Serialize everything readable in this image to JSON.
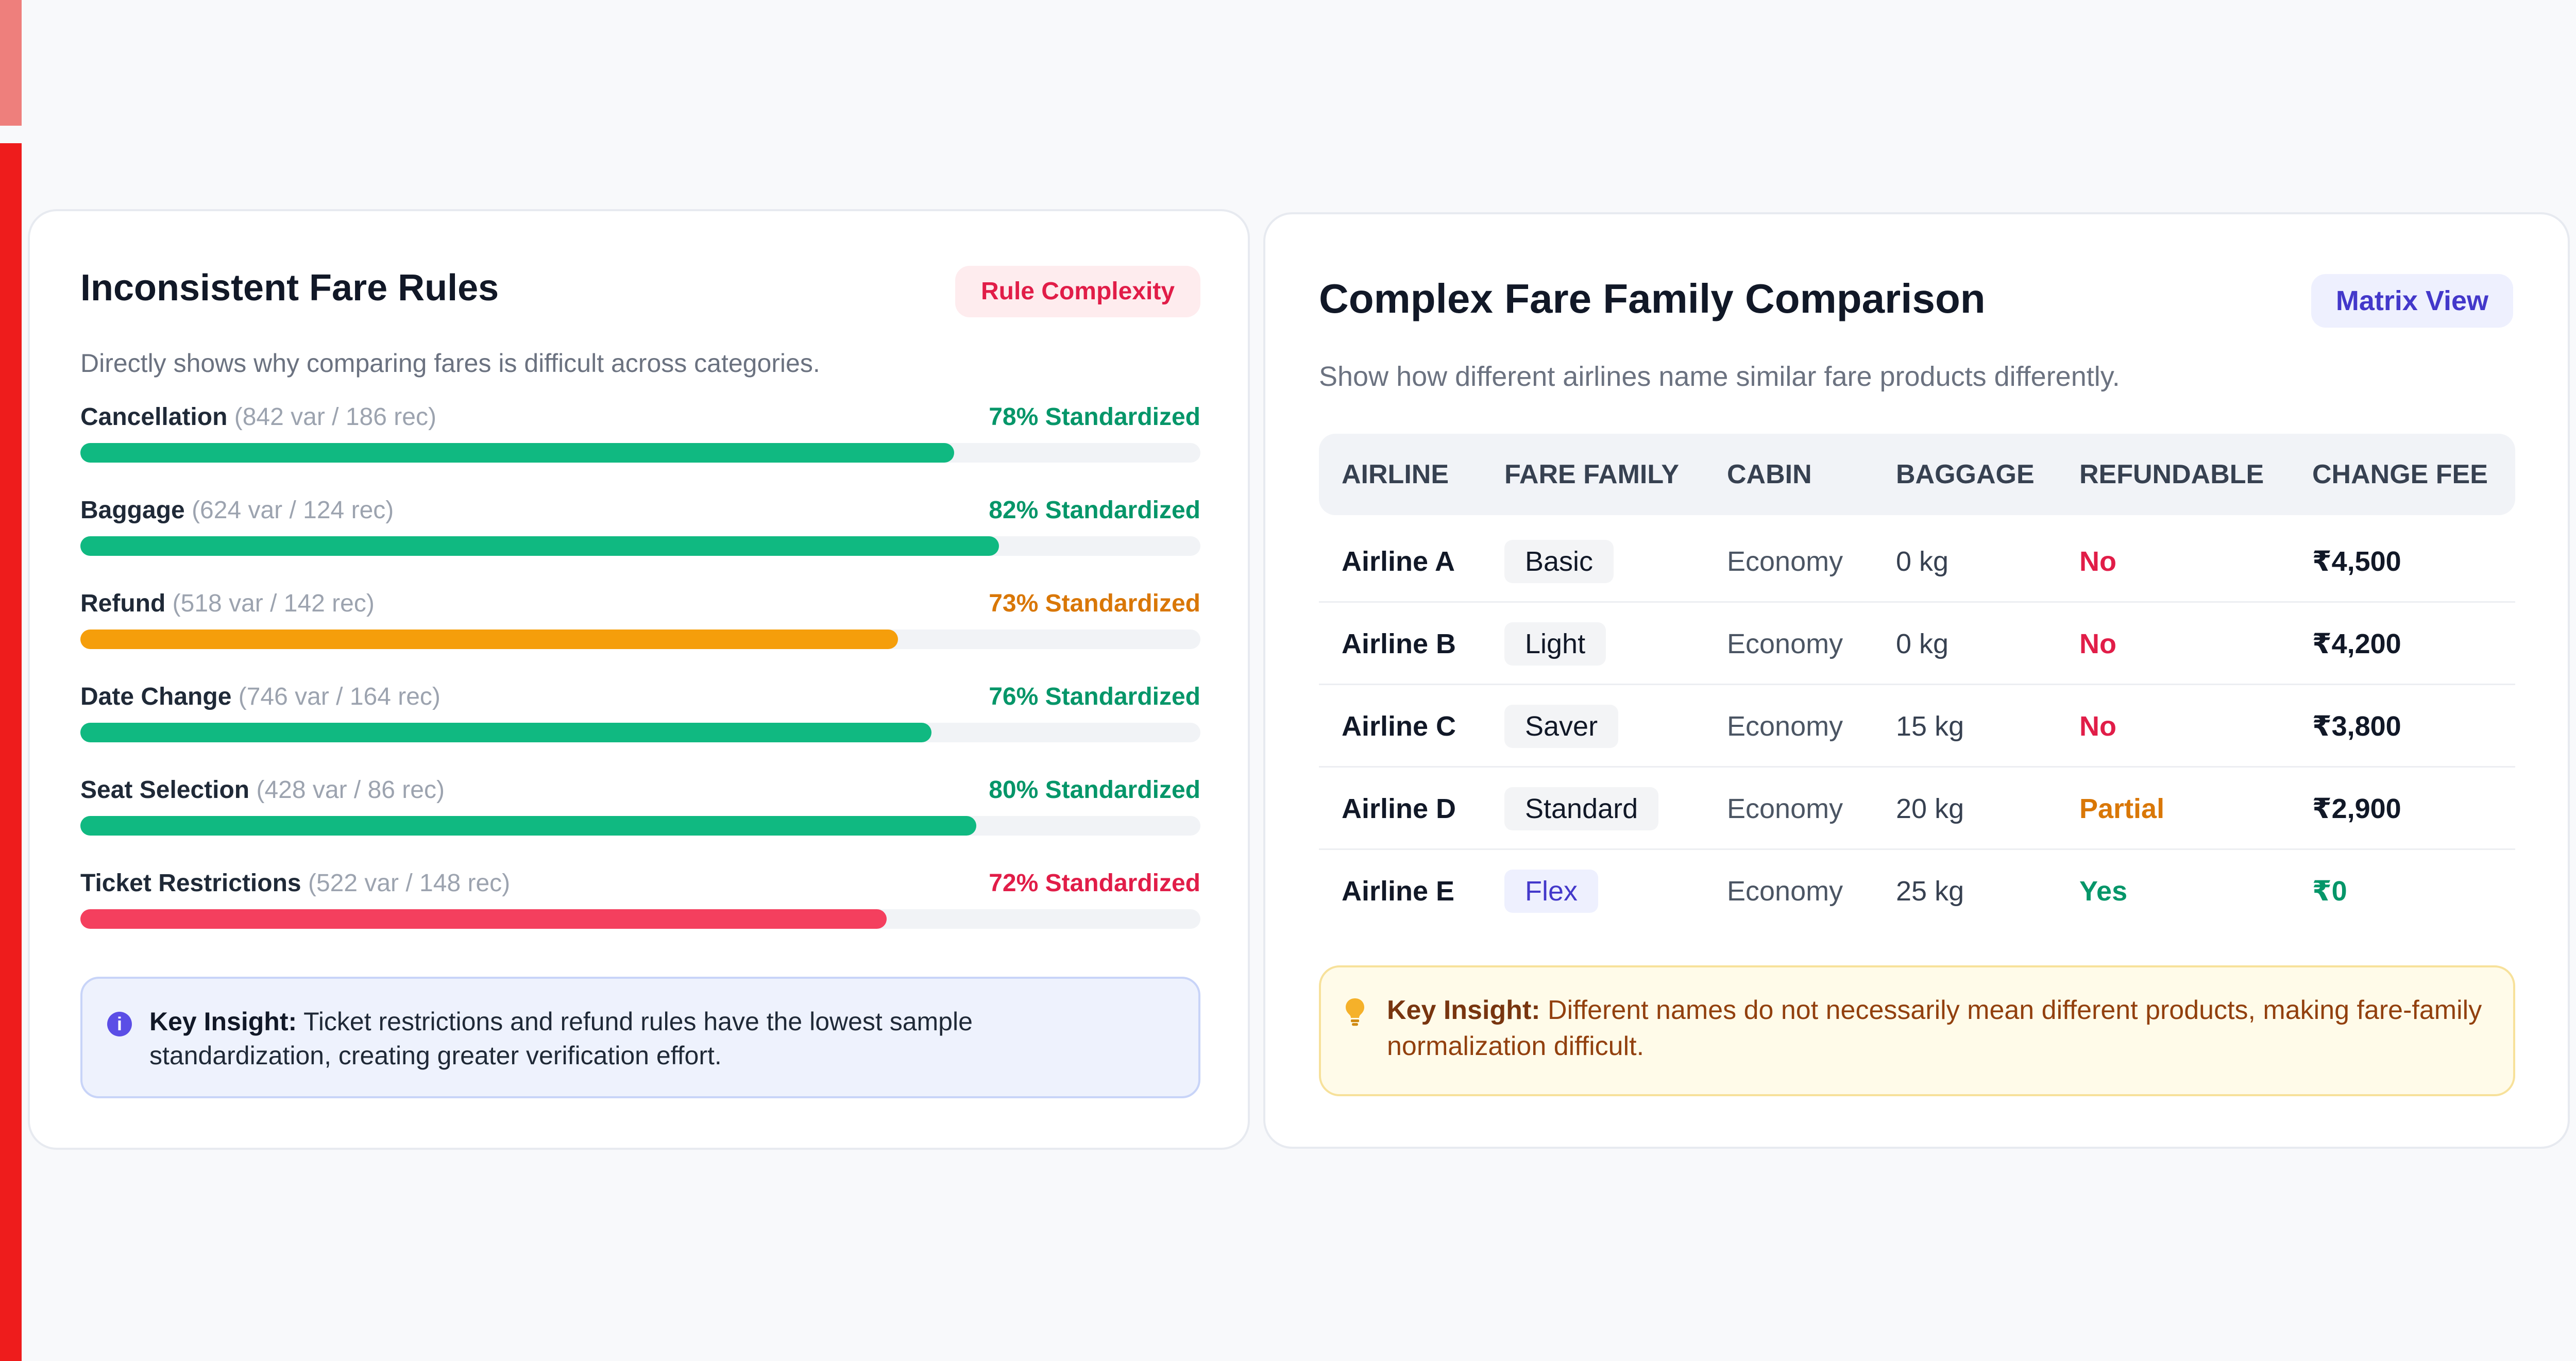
{
  "colors": {
    "accent": "#ee1c1c",
    "accent_light": "#ee7f7c",
    "green": "#10b981",
    "amber": "#f59e0b",
    "rose": "#f43f5e",
    "track": "#f1f3f6"
  },
  "fare_rules": {
    "title": "Inconsistent Fare Rules",
    "tag": "Rule Complexity",
    "description": "Directly shows why comparing fares is difficult across categories.",
    "rules": [
      {
        "name": "Cancellation",
        "meta": "(842 var / 186 rec)",
        "pct_label": "78% Standardized",
        "level": 78,
        "color": "#10b981",
        "text_color": "#059669"
      },
      {
        "name": "Baggage",
        "meta": "(624 var / 124 rec)",
        "pct_label": "82% Standardized",
        "level": 82,
        "color": "#10b981",
        "text_color": "#059669"
      },
      {
        "name": "Refund",
        "meta": "(518 var / 142 rec)",
        "pct_label": "73% Standardized",
        "level": 73,
        "color": "#f59e0b",
        "text_color": "#d97706"
      },
      {
        "name": "Date Change",
        "meta": "(746 var / 164 rec)",
        "pct_label": "76% Standardized",
        "level": 76,
        "color": "#10b981",
        "text_color": "#059669"
      },
      {
        "name": "Seat Selection",
        "meta": "(428 var / 86 rec)",
        "pct_label": "80% Standardized",
        "level": 80,
        "color": "#10b981",
        "text_color": "#059669"
      },
      {
        "name": "Ticket Restrictions",
        "meta": "(522 var / 148 rec)",
        "pct_label": "72% Standardized",
        "level": 72,
        "color": "#f43f5e",
        "text_color": "#e11d48"
      }
    ],
    "insight": {
      "icon": "info-icon",
      "label": "Key Insight:",
      "text": " Ticket restrictions and refund rules have the lowest sample standardization, creating greater verification effort."
    }
  },
  "fare_families": {
    "title": "Complex Fare Family Comparison",
    "tag": "Matrix View",
    "description": "Show how different airlines name similar fare products differently.",
    "columns": [
      "AIRLINE",
      "FARE FAMILY",
      "CABIN",
      "BAGGAGE",
      "REFUNDABLE",
      "CHANGE FEE"
    ],
    "rows": [
      {
        "airline": "Airline A",
        "family": "Basic",
        "cabin": "Economy",
        "baggage": "0 kg",
        "refundable": "No",
        "change_fee": "₹4,500",
        "refundable_color": "#e11d48",
        "fee_color": "#111827",
        "family_bg": "#f3f4f6",
        "family_color": "#111827"
      },
      {
        "airline": "Airline B",
        "family": "Light",
        "cabin": "Economy",
        "baggage": "0 kg",
        "refundable": "No",
        "change_fee": "₹4,200",
        "refundable_color": "#e11d48",
        "fee_color": "#111827",
        "family_bg": "#f3f4f6",
        "family_color": "#111827"
      },
      {
        "airline": "Airline C",
        "family": "Saver",
        "cabin": "Economy",
        "baggage": "15 kg",
        "refundable": "No",
        "change_fee": "₹3,800",
        "refundable_color": "#e11d48",
        "fee_color": "#111827",
        "family_bg": "#f3f4f6",
        "family_color": "#111827"
      },
      {
        "airline": "Airline D",
        "family": "Standard",
        "cabin": "Economy",
        "baggage": "20 kg",
        "refundable": "Partial",
        "change_fee": "₹2,900",
        "refundable_color": "#d97706",
        "fee_color": "#111827",
        "family_bg": "#f3f4f6",
        "family_color": "#111827"
      },
      {
        "airline": "Airline E",
        "family": "Flex",
        "cabin": "Economy",
        "baggage": "25 kg",
        "refundable": "Yes",
        "change_fee": "₹0",
        "refundable_color": "#059669",
        "fee_color": "#059669",
        "family_bg": "#eef0fe",
        "family_color": "#4338ca"
      }
    ],
    "insight": {
      "icon": "lightbulb-icon",
      "label": "Key Insight:",
      "text": " Different names do not necessarily mean different products, making fare-family normalization difficult."
    }
  }
}
